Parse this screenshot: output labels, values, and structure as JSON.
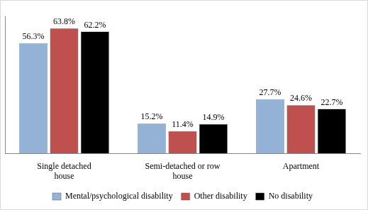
{
  "chart_data": {
    "type": "bar",
    "categories": [
      "Single detached house",
      "Semi-detached or row house",
      "Apartment"
    ],
    "series": [
      {
        "name": "Mental/psychological disability",
        "color": "#95b3d7",
        "values": [
          56.3,
          15.2,
          27.7
        ],
        "value_labels": [
          "56.3%",
          "15.2%",
          "27.7%"
        ]
      },
      {
        "name": "Other disability",
        "color": "#c0504d",
        "values": [
          63.8,
          11.4,
          24.6
        ],
        "value_labels": [
          "63.8%",
          "11.4%",
          "24.6%"
        ]
      },
      {
        "name": "No disability",
        "color": "#000000",
        "values": [
          62.2,
          14.9,
          22.7
        ],
        "value_labels": [
          "62.2%",
          "14.9%",
          "22.7%"
        ]
      }
    ],
    "ylim": [
      0,
      70
    ],
    "grid": false,
    "data_labels": true,
    "tick_labels": "x",
    "legend": "bottom"
  }
}
